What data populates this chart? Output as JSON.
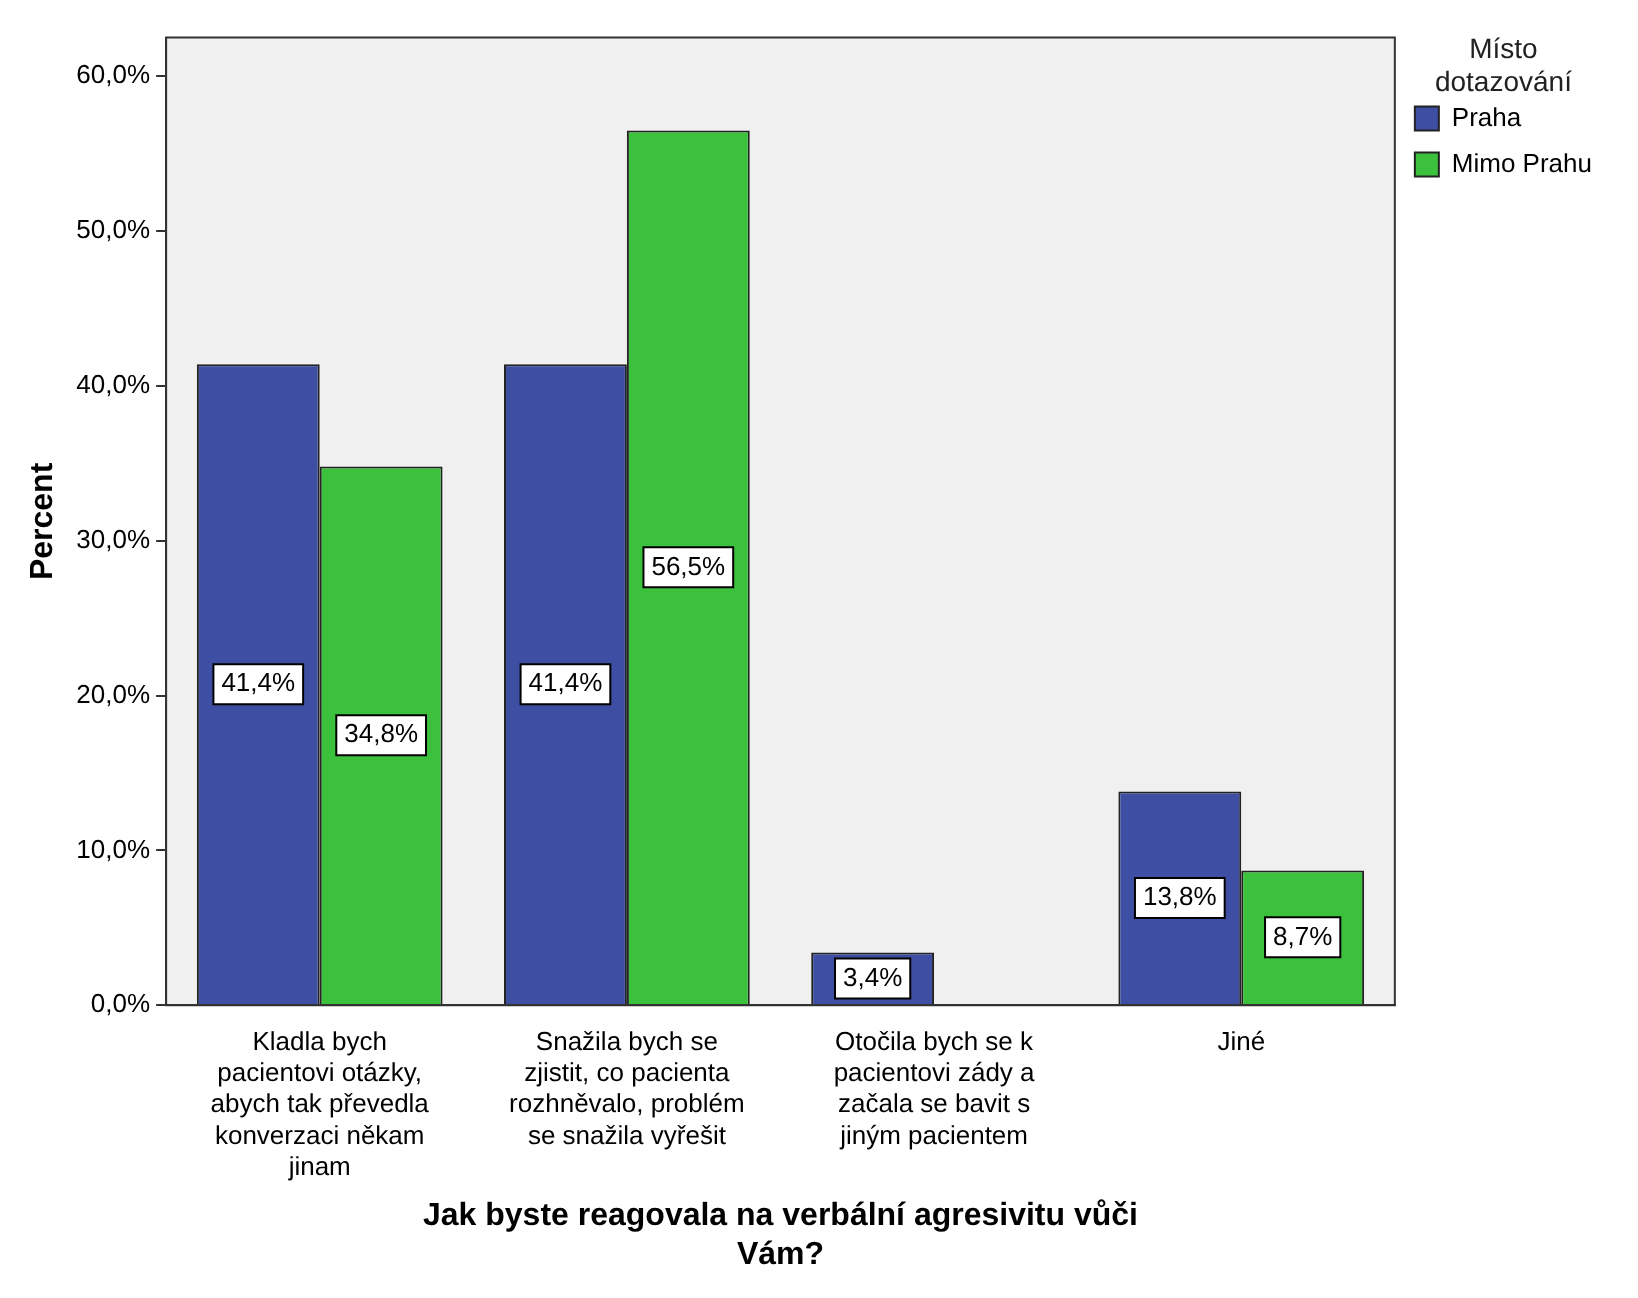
{
  "chart_data": {
    "type": "bar",
    "xlabel": "Jak byste reagovala na verbální agresivitu vůči Vám?",
    "ylabel": "Percent",
    "legend_title": "Místo dotazování",
    "legend": "top right",
    "grid": false,
    "categories": [
      "Kladla bych pacientovi otázky, abych tak převedla konverzaci někam jinam",
      "Snažila bych se zjistit, co pacienta rozhněvalo, problém se snažila vyřešit",
      "Otočila bych se k pacientovi zády a začala se bavit s jiným pacientem",
      "Jiné"
    ],
    "ylim": [
      0,
      62.5
    ],
    "yticks": [
      {
        "value": 0,
        "label": "0,0%"
      },
      {
        "value": 10,
        "label": "10,0%"
      },
      {
        "value": 20,
        "label": "20,0%"
      },
      {
        "value": 30,
        "label": "30,0%"
      },
      {
        "value": 40,
        "label": "40,0%"
      },
      {
        "value": 50,
        "label": "50,0%"
      },
      {
        "value": 60,
        "label": "60,0%"
      }
    ],
    "series": [
      {
        "name": "Praha",
        "color": "#3e4fa3",
        "values": [
          41.4,
          41.4,
          3.4,
          13.8
        ],
        "value_labels": [
          "41,4%",
          "41,4%",
          "3,4%",
          "13,8%"
        ]
      },
      {
        "name": "Mimo Prahu",
        "color": "#3cc13c",
        "values": [
          34.8,
          56.5,
          null,
          8.7
        ],
        "value_labels": [
          "34,8%",
          "56,5%",
          null,
          "8,7%"
        ]
      }
    ]
  }
}
